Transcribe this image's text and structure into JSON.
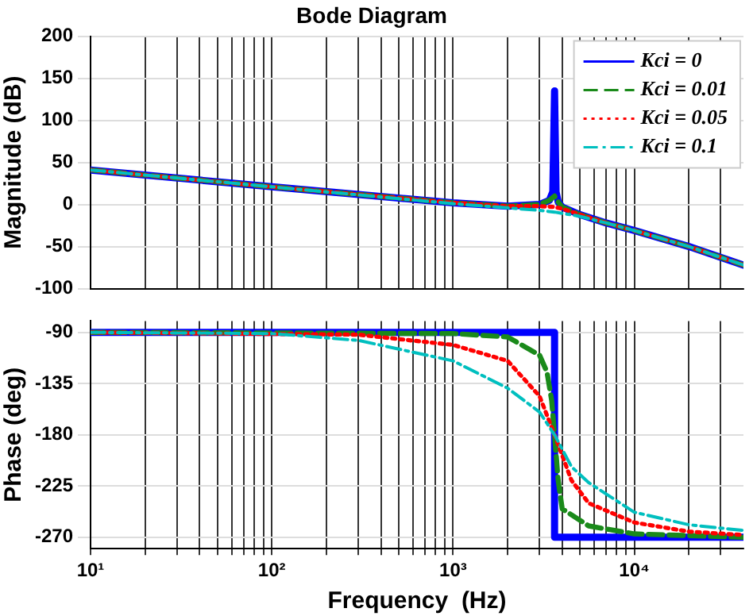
{
  "chart_data": [
    {
      "type": "line",
      "title": "Bode Diagram",
      "ylabel": "Magnitude (dB)",
      "log": "x",
      "grid": true,
      "legend": "top right",
      "marker": "none",
      "tick_labels": "y",
      "xlim": [
        10,
        40000
      ],
      "ylim": [
        -100,
        200
      ],
      "yticks": [
        -100,
        -50,
        0,
        50,
        100,
        150,
        200
      ],
      "xticks": [
        {
          "value": 10,
          "label": null
        },
        {
          "value": 20,
          "label": null
        },
        {
          "value": 30,
          "label": null
        },
        {
          "value": 40,
          "label": null
        },
        {
          "value": 50,
          "label": null
        },
        {
          "value": 60,
          "label": null
        },
        {
          "value": 70,
          "label": null
        },
        {
          "value": 80,
          "label": null
        },
        {
          "value": 90,
          "label": null
        },
        {
          "value": 100,
          "label": null
        },
        {
          "value": 200,
          "label": null
        },
        {
          "value": 300,
          "label": null
        },
        {
          "value": 400,
          "label": null
        },
        {
          "value": 500,
          "label": null
        },
        {
          "value": 600,
          "label": null
        },
        {
          "value": 700,
          "label": null
        },
        {
          "value": 800,
          "label": null
        },
        {
          "value": 900,
          "label": null
        },
        {
          "value": 1000,
          "label": null
        },
        {
          "value": 2000,
          "label": null
        },
        {
          "value": 3000,
          "label": null
        },
        {
          "value": 4000,
          "label": null
        },
        {
          "value": 5000,
          "label": null
        },
        {
          "value": 6000,
          "label": null
        },
        {
          "value": 7000,
          "label": null
        },
        {
          "value": 8000,
          "label": null
        },
        {
          "value": 9000,
          "label": null
        },
        {
          "value": 10000,
          "label": null
        },
        {
          "value": 20000,
          "label": null
        },
        {
          "value": 30000,
          "label": null
        }
      ],
      "series": [
        {
          "name": "Kci = 0",
          "color": "#0000ff",
          "line_style": "solid",
          "x": [
            10,
            100,
            1000,
            2000,
            3000,
            3400,
            3550,
            3630,
            3700,
            3800,
            4000,
            5000,
            7000,
            10000,
            20000,
            40000
          ],
          "values": [
            41,
            21,
            2,
            -2,
            0,
            5,
            15,
            135,
            15,
            3,
            -3,
            -12,
            -22,
            -31,
            -50,
            -72
          ]
        },
        {
          "name": "Kci = 0.01",
          "color": "#1a8a1a",
          "line_style": "dashed",
          "x": [
            10,
            100,
            1000,
            2000,
            3000,
            3400,
            3630,
            3800,
            4000,
            5000,
            7000,
            10000,
            20000,
            40000
          ],
          "values": [
            41,
            21,
            2,
            -2,
            0,
            5,
            10,
            3,
            -3,
            -12,
            -22,
            -31,
            -50,
            -72
          ]
        },
        {
          "name": "Kci = 0.05",
          "color": "#ff0000",
          "line_style": "dotted",
          "x": [
            10,
            100,
            1000,
            2000,
            3000,
            3630,
            4000,
            5000,
            7000,
            10000,
            20000,
            40000
          ],
          "values": [
            41,
            21,
            2,
            -2,
            -2,
            -3,
            -5,
            -12,
            -22,
            -31,
            -50,
            -72
          ]
        },
        {
          "name": "Kci = 0.1",
          "color": "#00bfbf",
          "line_style": "dashdot",
          "x": [
            10,
            100,
            1000,
            2000,
            3000,
            3630,
            5000,
            7000,
            10000,
            20000,
            40000
          ],
          "values": [
            41,
            21,
            1,
            -4,
            -7,
            -9,
            -14,
            -22,
            -31,
            -50,
            -72
          ]
        }
      ]
    },
    {
      "type": "line",
      "xlabel": "Frequency  (Hz)",
      "ylabel": "Phase (deg)",
      "log": "x",
      "grid": true,
      "marker": "none",
      "xlim": [
        10,
        40000
      ],
      "ylim": [
        -280,
        -80
      ],
      "yticks": [
        -270,
        -225,
        -180,
        -135,
        -90
      ],
      "xticks": [
        {
          "value": 10,
          "label": "10¹"
        },
        {
          "value": 20,
          "label": null
        },
        {
          "value": 30,
          "label": null
        },
        {
          "value": 40,
          "label": null
        },
        {
          "value": 50,
          "label": null
        },
        {
          "value": 60,
          "label": null
        },
        {
          "value": 70,
          "label": null
        },
        {
          "value": 80,
          "label": null
        },
        {
          "value": 90,
          "label": null
        },
        {
          "value": 100,
          "label": "10²"
        },
        {
          "value": 200,
          "label": null
        },
        {
          "value": 300,
          "label": null
        },
        {
          "value": 400,
          "label": null
        },
        {
          "value": 500,
          "label": null
        },
        {
          "value": 600,
          "label": null
        },
        {
          "value": 700,
          "label": null
        },
        {
          "value": 800,
          "label": null
        },
        {
          "value": 900,
          "label": null
        },
        {
          "value": 1000,
          "label": "10³"
        },
        {
          "value": 2000,
          "label": null
        },
        {
          "value": 3000,
          "label": null
        },
        {
          "value": 4000,
          "label": null
        },
        {
          "value": 5000,
          "label": null
        },
        {
          "value": 6000,
          "label": null
        },
        {
          "value": 7000,
          "label": null
        },
        {
          "value": 8000,
          "label": null
        },
        {
          "value": 9000,
          "label": null
        },
        {
          "value": 10000,
          "label": "10⁴"
        },
        {
          "value": 20000,
          "label": null
        },
        {
          "value": 30000,
          "label": null
        }
      ],
      "series": [
        {
          "color": "#0000ff",
          "line_style": "solid",
          "x": [
            10,
            3630,
            3630,
            40000
          ],
          "values": [
            -90,
            -90,
            -270,
            -270
          ]
        },
        {
          "color": "#1a8a1a",
          "line_style": "dashed",
          "x": [
            10,
            1000,
            2000,
            3000,
            3300,
            3500,
            3630,
            3800,
            4000,
            5600,
            10000,
            40000
          ],
          "values": [
            -90,
            -91,
            -94,
            -110,
            -125,
            -150,
            -180,
            -220,
            -245,
            -260,
            -267,
            -270
          ]
        },
        {
          "color": "#ff0000",
          "line_style": "dotted",
          "x": [
            10,
            300,
            1000,
            2000,
            3000,
            3630,
            4500,
            5600,
            10000,
            20000,
            40000
          ],
          "values": [
            -90,
            -92,
            -101,
            -115,
            -146,
            -180,
            -220,
            -240,
            -257,
            -265,
            -268
          ]
        },
        {
          "color": "#00bfbf",
          "line_style": "dashdot",
          "x": [
            10,
            100,
            300,
            1000,
            2000,
            3000,
            3630,
            4500,
            5600,
            10000,
            20000,
            40000
          ],
          "values": [
            -90,
            -91,
            -97,
            -115,
            -139,
            -160,
            -180,
            -208,
            -222,
            -248,
            -259,
            -264
          ]
        }
      ]
    }
  ]
}
